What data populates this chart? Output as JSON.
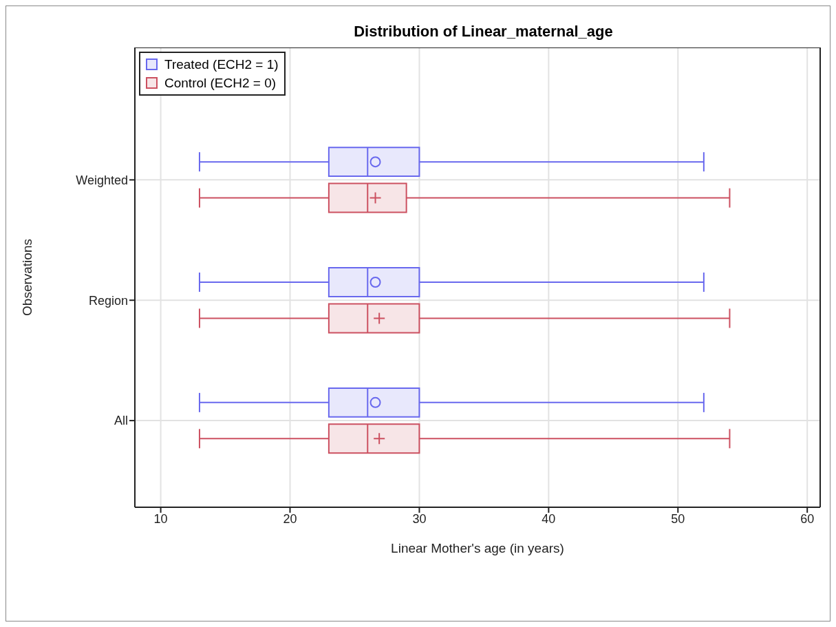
{
  "chart_data": {
    "type": "box",
    "title": "Distribution of Linear_maternal_age",
    "xlabel": "Linear Mother's age (in years)",
    "ylabel": "Observations",
    "orientation": "horizontal",
    "categories": [
      "Weighted",
      "Region",
      "All"
    ],
    "xlim": [
      8,
      61
    ],
    "xticks": [
      10,
      20,
      30,
      40,
      50,
      60
    ],
    "grid": true,
    "legend": "top left",
    "series": [
      {
        "name": "Treated (ECH2 = 1)",
        "color": "#6868ee",
        "marker": "circle",
        "boxes": [
          {
            "low": 13,
            "q1": 23,
            "median": 26,
            "q3": 30,
            "high": 52,
            "mean": 26.6
          },
          {
            "low": 13,
            "q1": 23,
            "median": 26,
            "q3": 30,
            "high": 52,
            "mean": 26.6
          },
          {
            "low": 13,
            "q1": 23,
            "median": 26,
            "q3": 30,
            "high": 52,
            "mean": 26.6
          }
        ]
      },
      {
        "name": "Control (ECH2 = 0)",
        "color": "#cc5060",
        "marker": "cross",
        "boxes": [
          {
            "low": 13,
            "q1": 23,
            "median": 26,
            "q3": 29,
            "high": 54,
            "mean": 26.6
          },
          {
            "low": 13,
            "q1": 23,
            "median": 26,
            "q3": 30,
            "high": 54,
            "mean": 26.9
          },
          {
            "low": 13,
            "q1": 23,
            "median": 26,
            "q3": 30,
            "high": 54,
            "mean": 26.9
          }
        ]
      }
    ]
  }
}
